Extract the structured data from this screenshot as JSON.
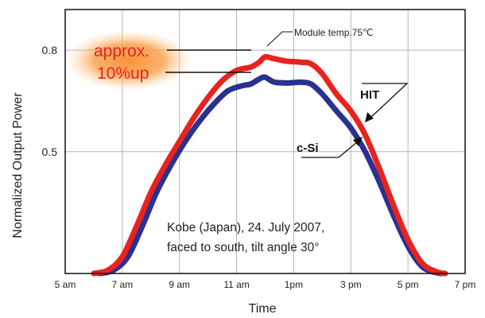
{
  "chart_data": {
    "type": "line",
    "title": "",
    "xlabel": "Time",
    "ylabel": "Normalized Output Power",
    "x_ticks": [
      "5 am",
      "7 am",
      "9 am",
      "11 am",
      "1pm",
      "3 pm",
      "5 pm",
      "7 pm"
    ],
    "y_ticks": [
      "0.5",
      "0.8"
    ],
    "xlim": [
      5,
      19
    ],
    "ylim": [
      0.14,
      0.92
    ],
    "grid": true,
    "series": [
      {
        "name": "HIT",
        "color": "#e8231f",
        "x": [
          6.0,
          6.5,
          7.0,
          7.5,
          8.0,
          8.5,
          9.0,
          9.5,
          10.0,
          10.5,
          11.0,
          11.5,
          11.8,
          12.0,
          12.3,
          12.7,
          13.0,
          13.3,
          13.6,
          14.0,
          14.5,
          15.0,
          15.5,
          16.0,
          16.5,
          17.0,
          17.5,
          18.0,
          18.3
        ],
        "y": [
          0.14,
          0.15,
          0.19,
          0.28,
          0.38,
          0.46,
          0.53,
          0.6,
          0.66,
          0.71,
          0.74,
          0.75,
          0.765,
          0.78,
          0.775,
          0.768,
          0.766,
          0.764,
          0.76,
          0.73,
          0.67,
          0.62,
          0.55,
          0.45,
          0.34,
          0.24,
          0.17,
          0.145,
          0.14
        ]
      },
      {
        "name": "c-Si",
        "color": "#2a3190",
        "x": [
          6.2,
          6.7,
          7.2,
          7.7,
          8.2,
          8.7,
          9.2,
          9.7,
          10.2,
          10.7,
          11.2,
          11.5,
          11.8,
          12.0,
          12.3,
          12.7,
          13.0,
          13.3,
          13.6,
          14.0,
          14.5,
          15.0,
          15.5,
          16.0,
          16.5,
          17.0,
          17.5,
          18.0,
          18.2
        ],
        "y": [
          0.14,
          0.15,
          0.19,
          0.28,
          0.38,
          0.46,
          0.53,
          0.59,
          0.64,
          0.68,
          0.695,
          0.7,
          0.715,
          0.72,
          0.706,
          0.703,
          0.704,
          0.705,
          0.7,
          0.67,
          0.62,
          0.57,
          0.5,
          0.41,
          0.31,
          0.22,
          0.16,
          0.142,
          0.14
        ]
      }
    ],
    "annotations": {
      "module_temp": "Module temp.75℃",
      "callout_line1": "approx.",
      "callout_line2": "10%up",
      "note_line1": "Kobe (Japan), 24. July 2007,",
      "note_line2": "faced to south, tilt angle 30°"
    },
    "colors": {
      "callout_glow": "#f7a64a",
      "callout_text": "#e8231f",
      "grid": "#b5b5b5",
      "frame": "#111111"
    }
  }
}
